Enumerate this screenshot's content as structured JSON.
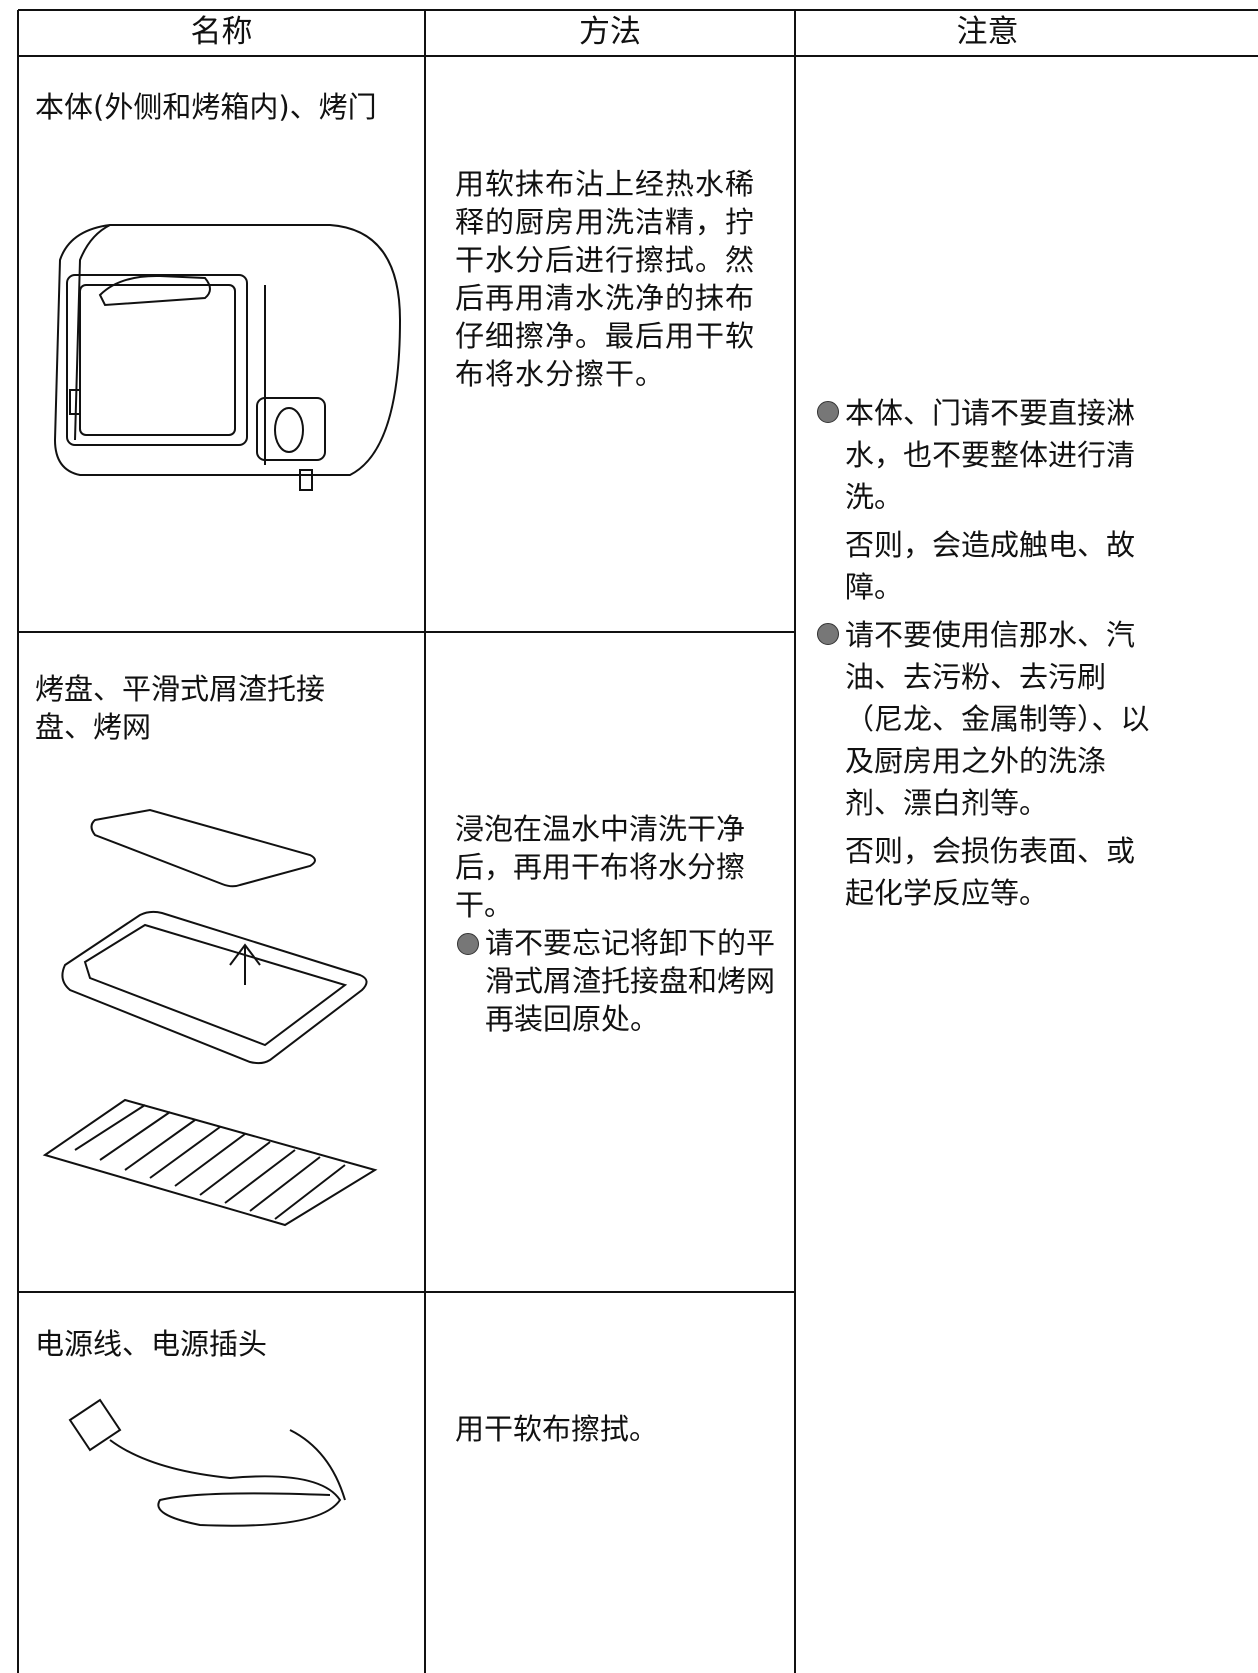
{
  "table": {
    "headers": [
      "名称",
      "方法",
      "注意"
    ],
    "rows": [
      {
        "name": "本体(外侧和烤箱内)、烤门",
        "method": "用软抹布沾上经热水稀释的厨房用洗洁精，拧干水分后进行擦拭。然后再用清水洗净的抹布仔细擦净。最后用干软布将水分擦干。"
      },
      {
        "name": "烤盘、平滑式屑渣托接盘、烤网",
        "method": "浸泡在温水中清洗干净后，再用干布将水分擦干。",
        "bullet": "请不要忘记将卸下的平滑式屑渣托接盘和烤网再装回原处。"
      },
      {
        "name": "电源线、电源插头",
        "method": "用干软布擦拭。"
      }
    ],
    "notes": [
      {
        "text": "本体、门请不要直接淋水，也不要整体进行清洗。",
        "detail": "否则，会造成触电、故障。"
      },
      {
        "text": "请不要使用信那水、汽油、去污粉、去污刷（尼龙、金属制等）、以及厨房用之外的洗涤剂、漂白剂等。",
        "detail": "否则，会损伤表面、或起化学反应等。"
      }
    ]
  }
}
